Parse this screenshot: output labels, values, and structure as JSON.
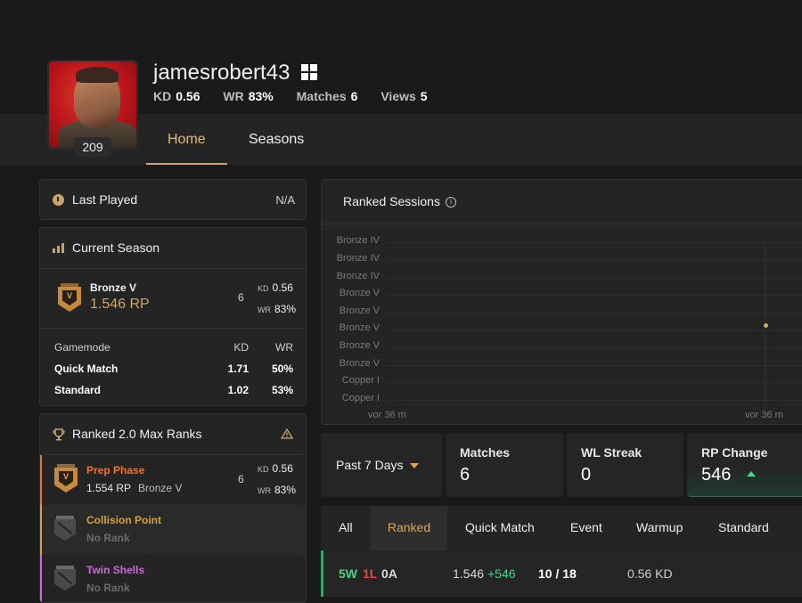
{
  "profile": {
    "username": "jamesrobert43",
    "level": "209",
    "platform_icon": "windows-icon",
    "stats": {
      "kd_label": "KD",
      "kd": "0.56",
      "wr_label": "WR",
      "wr": "83%",
      "matches_label": "Matches",
      "matches": "6",
      "views_label": "Views",
      "views": "5"
    }
  },
  "nav": {
    "tabs": [
      {
        "label": "Home",
        "active": true
      },
      {
        "label": "Seasons",
        "active": false
      }
    ]
  },
  "last_played": {
    "title": "Last Played",
    "value": "N/A",
    "icon": "clock-icon"
  },
  "current_season": {
    "title": "Current Season",
    "icon": "bar-chart-icon",
    "rank_name": "Bronze V",
    "rp": "1.546 RP",
    "emblem_label": "V",
    "matches": "6",
    "kd_label": "KD",
    "kd": "0.56",
    "wr_label": "WR",
    "wr": "83%",
    "table": {
      "headers": [
        "Gamemode",
        "KD",
        "WR"
      ],
      "rows": [
        {
          "mode": "Quick Match",
          "kd": "1.71",
          "wr": "50%"
        },
        {
          "mode": "Standard",
          "kd": "1.02",
          "wr": "53%"
        }
      ]
    }
  },
  "max_ranks": {
    "title": "Ranked 2.0 Max Ranks",
    "icon": "trophy-icon",
    "warning_icon": "warning-icon",
    "items": [
      {
        "name": "Prep Phase",
        "rp": "1.554 RP",
        "rank": "Bronze V",
        "matches": "6",
        "kd_label": "KD",
        "kd": "0.56",
        "wr_label": "WR",
        "wr": "83%",
        "color": "#e8742e",
        "emblem_label": "V"
      },
      {
        "name": "Collision Point",
        "status": "No Rank",
        "color": "#d8a03a"
      },
      {
        "name": "Twin Shells",
        "status": "No Rank",
        "color": "#c86ad8"
      }
    ]
  },
  "ranked_sessions": {
    "title": "Ranked Sessions",
    "info_icon": "info-icon",
    "y_labels": [
      "Bronze IV",
      "Bronze IV",
      "Bronze IV",
      "Bronze V",
      "Bronze V",
      "Bronze V",
      "Bronze V",
      "Bronze V",
      "Copper I",
      "Copper I"
    ],
    "x_labels": [
      "vor 36 m",
      "vor 36 m"
    ]
  },
  "filters": {
    "period": "Past 7 Days",
    "matches_label": "Matches",
    "matches": "6",
    "wl_label": "WL Streak",
    "wl": "0",
    "rp_label": "RP Change",
    "rp": "546",
    "rp_trend_icon": "up-arrow-icon"
  },
  "mode_tabs": [
    "All",
    "Ranked",
    "Quick Match",
    "Event",
    "Warmup",
    "Standard"
  ],
  "session_row": {
    "wins": "5W",
    "losses": "1L",
    "abandons": "0A",
    "rp": "1.546",
    "rp_delta": "+546",
    "kills_deaths": "10 / 18",
    "kd": "0.56 KD"
  },
  "colors": {
    "accent_gold": "#d8a55e",
    "win_green": "#4ed08e",
    "loss_red": "#e0474c"
  }
}
